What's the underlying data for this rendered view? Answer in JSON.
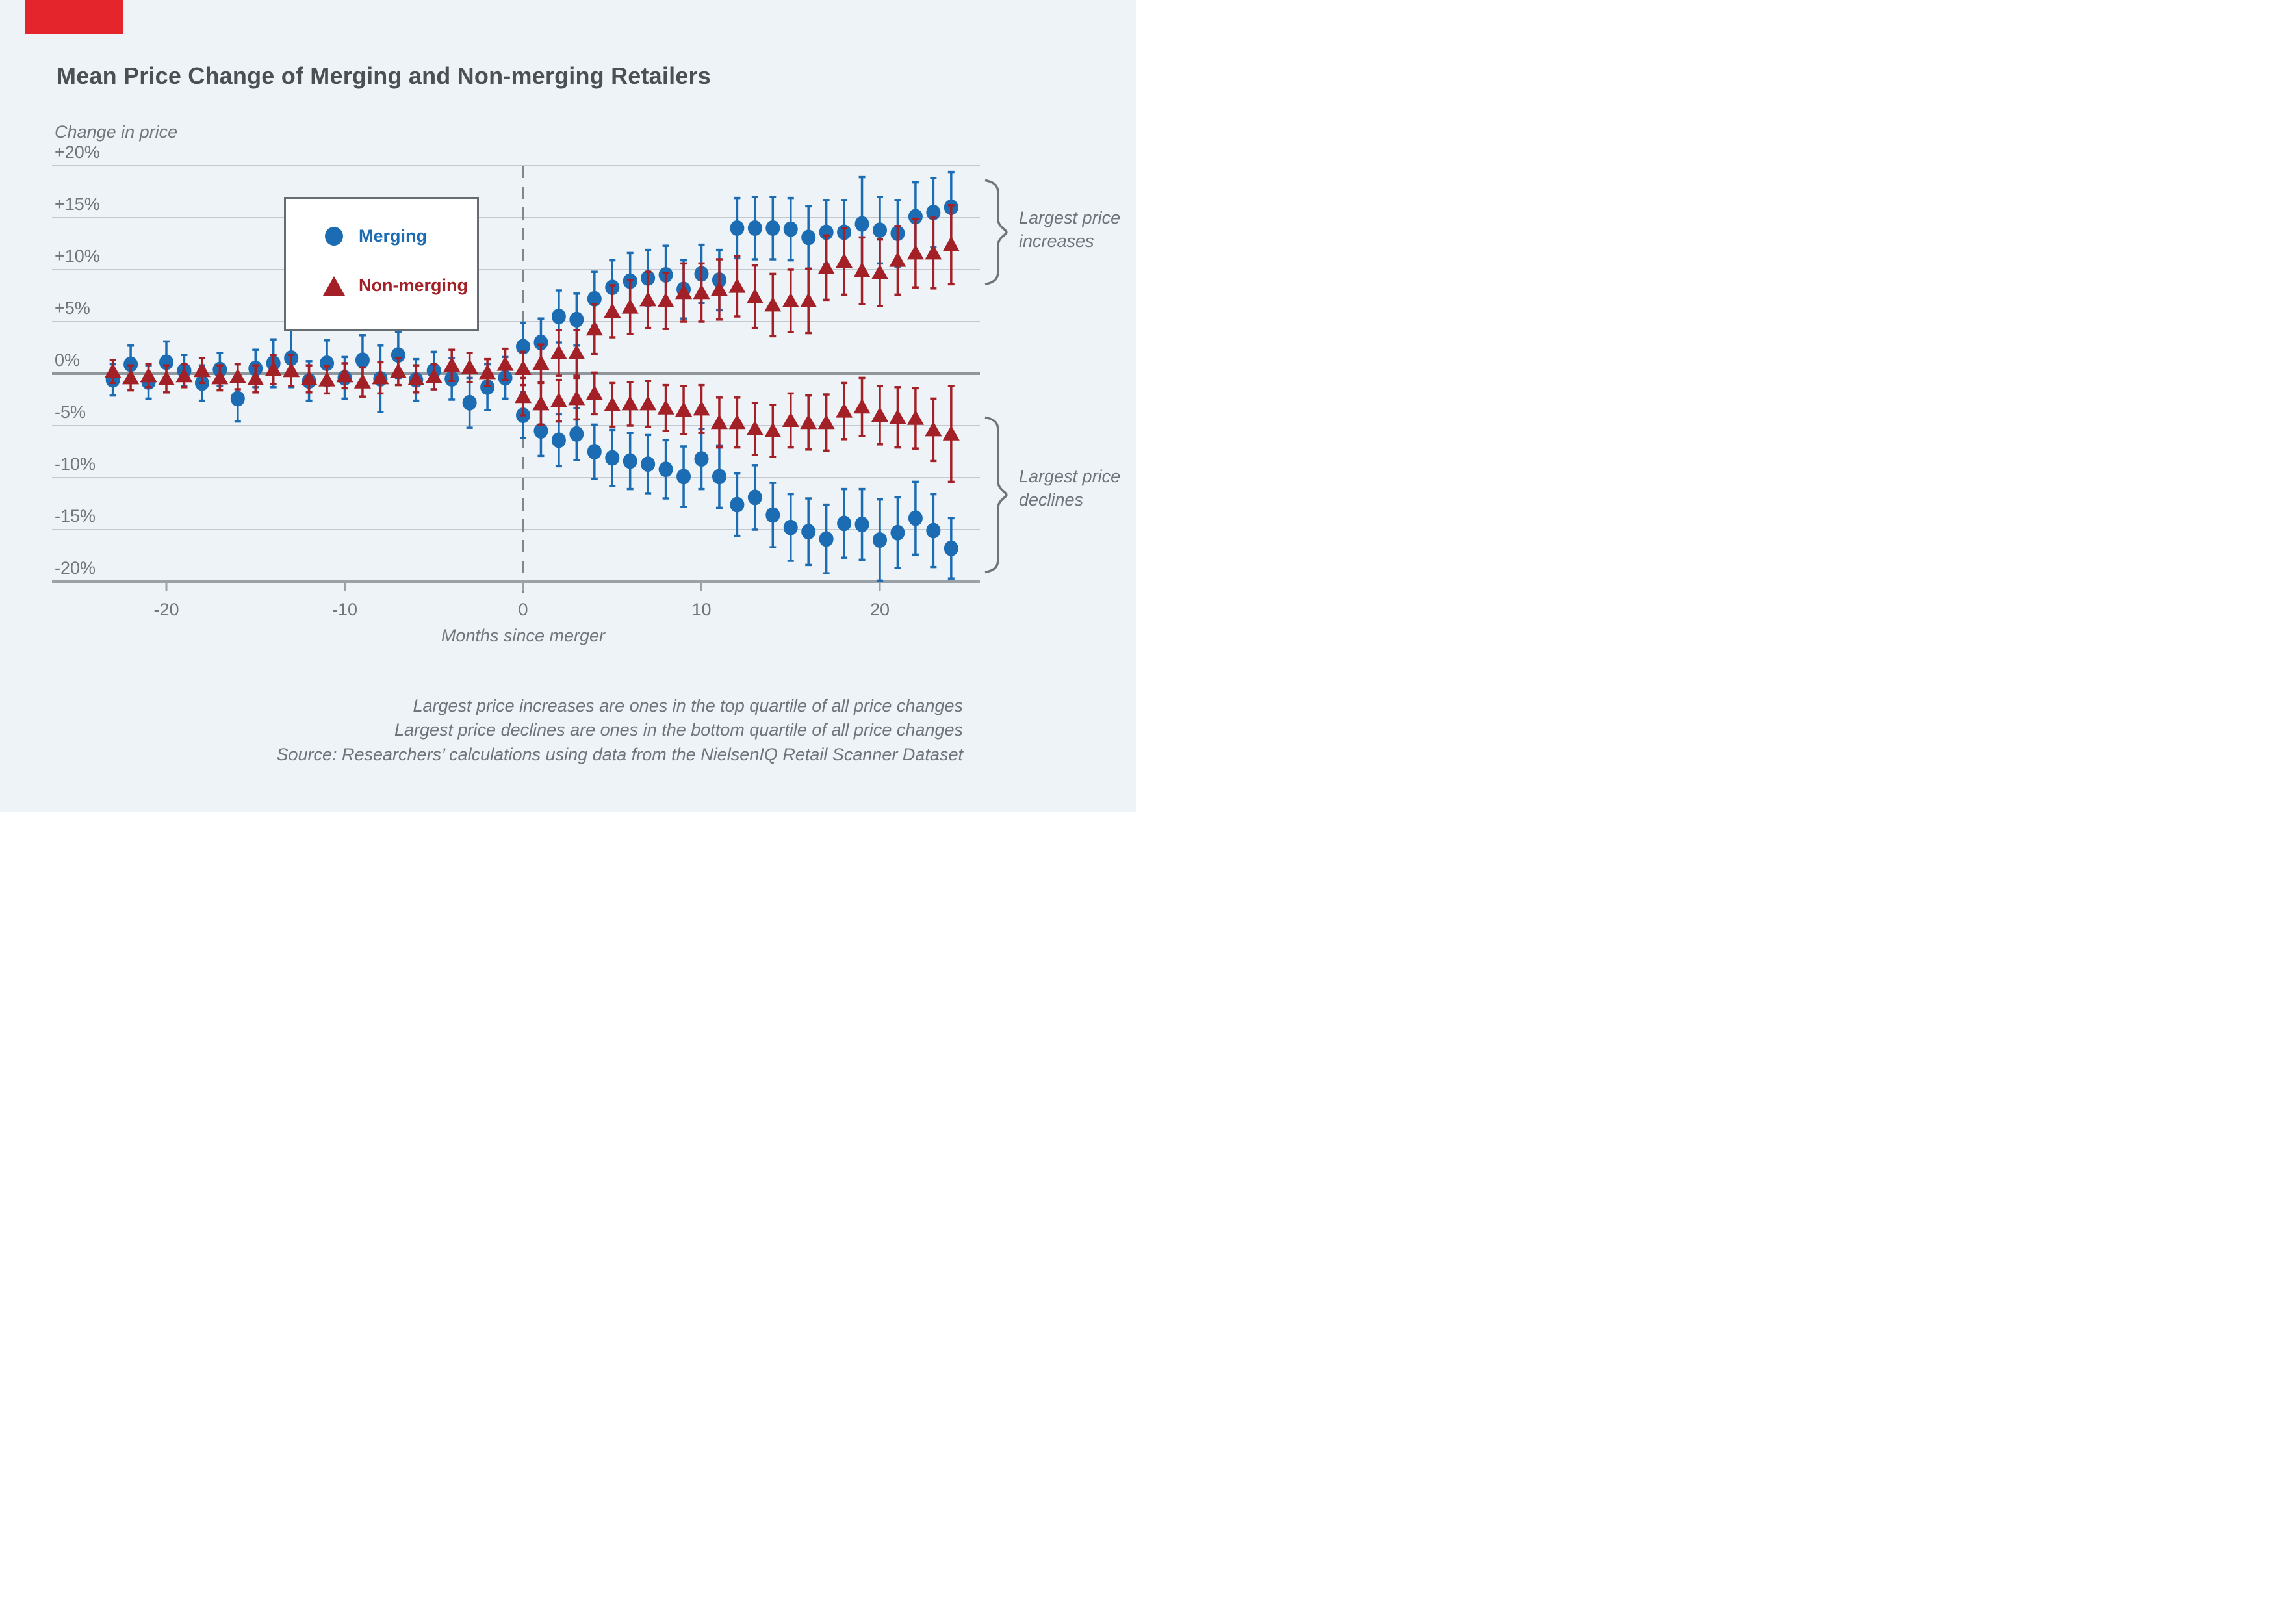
{
  "brand": {
    "color": "#e4252b"
  },
  "header": {
    "title": "Mean Price Change of Merging and Non-merging Retailers"
  },
  "legend": {
    "items": [
      {
        "label": "Merging"
      },
      {
        "label": "Non-merging"
      }
    ]
  },
  "notes": [
    "Largest price increases are ones in the top quartile of all price changes",
    "Largest price declines are ones in the bottom quartile of all price changes",
    "Source: Researchers’ calculations using data from the NielsenIQ Retail Scanner Dataset"
  ],
  "chart_data": {
    "type": "scatter",
    "title": "Mean Price Change of Merging and Non-merging Retailers",
    "y_axis_title": "Change in price",
    "x_axis_title": "Months since merger",
    "grid": true,
    "y_ticks": [
      20,
      15,
      10,
      5,
      0,
      -5,
      -10,
      -15,
      -20
    ],
    "y_tick_labels": [
      "+20%",
      "+15%",
      "+10%",
      "+5%",
      "0%",
      "-5%",
      "-10%",
      "-15%",
      "-20%"
    ],
    "x_ticks": [
      -20,
      -10,
      0,
      10,
      20
    ],
    "x_tick_labels": [
      "-20",
      "-10",
      "0",
      "10",
      "20"
    ],
    "x_range": [
      -26.4,
      25.7
    ],
    "y_range": [
      -20,
      20
    ],
    "event_month": 0,
    "point_format": [
      "month",
      "mean_price_change_pct",
      "error_halfwidth_pct"
    ],
    "colors": {
      "merging": "#1b6cb3",
      "nonmerging": "#a32026"
    },
    "series": [
      {
        "id": "merging-premerger",
        "name": "Merging",
        "marker": "circle",
        "color": "#1b6cb3",
        "points": [
          [
            -23,
            -0.6,
            1.5
          ],
          [
            -22,
            0.9,
            1.8
          ],
          [
            -21,
            -0.8,
            1.6
          ],
          [
            -20,
            1.1,
            2.0
          ],
          [
            -19,
            0.3,
            1.5
          ],
          [
            -18,
            -0.9,
            1.7
          ],
          [
            -17,
            0.4,
            1.6
          ],
          [
            -16,
            -2.4,
            2.2
          ],
          [
            -15,
            0.5,
            1.8
          ],
          [
            -14,
            1.0,
            2.3
          ],
          [
            -13,
            1.5,
            2.8
          ],
          [
            -12,
            -0.7,
            1.9
          ],
          [
            -11,
            1.0,
            2.2
          ],
          [
            -10,
            -0.4,
            2.0
          ],
          [
            -9,
            1.3,
            2.4
          ],
          [
            -8,
            -0.5,
            3.2
          ],
          [
            -7,
            1.8,
            2.2
          ],
          [
            -6,
            -0.6,
            2.0
          ],
          [
            -5,
            0.3,
            1.8
          ],
          [
            -4,
            -0.5,
            2.0
          ],
          [
            -3,
            -2.8,
            2.4
          ],
          [
            -2,
            -1.3,
            2.2
          ],
          [
            -1,
            -0.4,
            2.0
          ]
        ]
      },
      {
        "id": "merging-largest-increases",
        "name": "Merging",
        "marker": "circle",
        "color": "#1b6cb3",
        "points": [
          [
            0,
            2.6,
            2.3
          ],
          [
            1,
            3.0,
            2.3
          ],
          [
            2,
            5.5,
            2.5
          ],
          [
            3,
            5.2,
            2.5
          ],
          [
            4,
            7.2,
            2.6
          ],
          [
            5,
            8.3,
            2.6
          ],
          [
            6,
            8.9,
            2.7
          ],
          [
            7,
            9.2,
            2.7
          ],
          [
            8,
            9.5,
            2.8
          ],
          [
            9,
            8.1,
            2.8
          ],
          [
            10,
            9.6,
            2.8
          ],
          [
            11,
            9.0,
            2.9
          ],
          [
            12,
            14.0,
            2.9
          ],
          [
            13,
            14.0,
            3.0
          ],
          [
            14,
            14.0,
            3.0
          ],
          [
            15,
            13.9,
            3.0
          ],
          [
            16,
            13.1,
            3.0
          ],
          [
            17,
            13.6,
            3.1
          ],
          [
            18,
            13.6,
            3.1
          ],
          [
            19,
            14.4,
            4.5
          ],
          [
            20,
            13.8,
            3.2
          ],
          [
            21,
            13.5,
            3.2
          ],
          [
            22,
            15.1,
            3.3
          ],
          [
            23,
            15.5,
            3.3
          ],
          [
            24,
            16.0,
            3.4
          ]
        ]
      },
      {
        "id": "merging-largest-declines",
        "name": "Merging",
        "marker": "circle",
        "color": "#1b6cb3",
        "points": [
          [
            0,
            -4.0,
            2.2
          ],
          [
            1,
            -5.5,
            2.4
          ],
          [
            2,
            -6.4,
            2.5
          ],
          [
            3,
            -5.8,
            2.5
          ],
          [
            4,
            -7.5,
            2.6
          ],
          [
            5,
            -8.1,
            2.7
          ],
          [
            6,
            -8.4,
            2.7
          ],
          [
            7,
            -8.7,
            2.8
          ],
          [
            8,
            -9.2,
            2.8
          ],
          [
            9,
            -9.9,
            2.9
          ],
          [
            10,
            -8.2,
            2.9
          ],
          [
            11,
            -9.9,
            3.0
          ],
          [
            12,
            -12.6,
            3.0
          ],
          [
            13,
            -11.9,
            3.1
          ],
          [
            14,
            -13.6,
            3.1
          ],
          [
            15,
            -14.8,
            3.2
          ],
          [
            16,
            -15.2,
            3.2
          ],
          [
            17,
            -15.9,
            3.3
          ],
          [
            18,
            -14.4,
            3.3
          ],
          [
            19,
            -14.5,
            3.4
          ],
          [
            20,
            -16.0,
            3.9
          ],
          [
            21,
            -15.3,
            3.4
          ],
          [
            22,
            -13.9,
            3.5
          ],
          [
            23,
            -15.1,
            3.5
          ],
          [
            24,
            -16.8,
            2.9
          ]
        ]
      },
      {
        "id": "nonmerging-premerger",
        "name": "Non-merging",
        "marker": "triangle",
        "color": "#a32026",
        "points": [
          [
            -23,
            0.2,
            1.1
          ],
          [
            -22,
            -0.4,
            1.2
          ],
          [
            -21,
            -0.2,
            1.1
          ],
          [
            -20,
            -0.5,
            1.3
          ],
          [
            -19,
            -0.2,
            1.1
          ],
          [
            -18,
            0.3,
            1.2
          ],
          [
            -17,
            -0.4,
            1.2
          ],
          [
            -16,
            -0.3,
            1.2
          ],
          [
            -15,
            -0.5,
            1.3
          ],
          [
            -14,
            0.4,
            1.4
          ],
          [
            -13,
            0.3,
            1.5
          ],
          [
            -12,
            -0.5,
            1.3
          ],
          [
            -11,
            -0.6,
            1.3
          ],
          [
            -10,
            -0.2,
            1.2
          ],
          [
            -9,
            -0.8,
            1.4
          ],
          [
            -8,
            -0.4,
            1.5
          ],
          [
            -7,
            0.2,
            1.3
          ],
          [
            -6,
            -0.5,
            1.3
          ],
          [
            -5,
            -0.3,
            1.2
          ],
          [
            -4,
            0.8,
            1.5
          ],
          [
            -3,
            0.6,
            1.4
          ],
          [
            -2,
            0.1,
            1.3
          ],
          [
            -1,
            0.9,
            1.5
          ]
        ]
      },
      {
        "id": "nonmerging-largest-increases",
        "name": "Non-merging",
        "marker": "triangle",
        "color": "#a32026",
        "points": [
          [
            0,
            0.5,
            1.6
          ],
          [
            1,
            1.0,
            1.8
          ],
          [
            2,
            2.0,
            2.2
          ],
          [
            3,
            2.0,
            2.2
          ],
          [
            4,
            4.3,
            2.4
          ],
          [
            5,
            6.0,
            2.5
          ],
          [
            6,
            6.4,
            2.6
          ],
          [
            7,
            7.1,
            2.7
          ],
          [
            8,
            7.0,
            2.7
          ],
          [
            9,
            7.8,
            2.8
          ],
          [
            10,
            7.8,
            2.8
          ],
          [
            11,
            8.1,
            2.9
          ],
          [
            12,
            8.4,
            2.9
          ],
          [
            13,
            7.4,
            3.0
          ],
          [
            14,
            6.6,
            3.0
          ],
          [
            15,
            7.0,
            3.0
          ],
          [
            16,
            7.0,
            3.1
          ],
          [
            17,
            10.2,
            3.1
          ],
          [
            18,
            10.8,
            3.2
          ],
          [
            19,
            9.9,
            3.2
          ],
          [
            20,
            9.7,
            3.2
          ],
          [
            21,
            10.9,
            3.3
          ],
          [
            22,
            11.6,
            3.3
          ],
          [
            23,
            11.6,
            3.4
          ],
          [
            24,
            12.4,
            3.8
          ]
        ]
      },
      {
        "id": "nonmerging-largest-declines",
        "name": "Non-merging",
        "marker": "triangle",
        "color": "#a32026",
        "points": [
          [
            0,
            -2.2,
            1.8
          ],
          [
            1,
            -2.9,
            2.0
          ],
          [
            2,
            -2.6,
            2.0
          ],
          [
            3,
            -2.4,
            2.0
          ],
          [
            4,
            -1.9,
            2.0
          ],
          [
            5,
            -3.0,
            2.1
          ],
          [
            6,
            -2.9,
            2.1
          ],
          [
            7,
            -2.9,
            2.2
          ],
          [
            8,
            -3.3,
            2.2
          ],
          [
            9,
            -3.5,
            2.3
          ],
          [
            10,
            -3.4,
            2.3
          ],
          [
            11,
            -4.7,
            2.4
          ],
          [
            12,
            -4.7,
            2.4
          ],
          [
            13,
            -5.3,
            2.5
          ],
          [
            14,
            -5.5,
            2.5
          ],
          [
            15,
            -4.5,
            2.6
          ],
          [
            16,
            -4.7,
            2.6
          ],
          [
            17,
            -4.7,
            2.7
          ],
          [
            18,
            -3.6,
            2.7
          ],
          [
            19,
            -3.2,
            2.8
          ],
          [
            20,
            -4.0,
            2.8
          ],
          [
            21,
            -4.2,
            2.9
          ],
          [
            22,
            -4.3,
            2.9
          ],
          [
            23,
            -5.4,
            3.0
          ],
          [
            24,
            -5.8,
            4.6
          ]
        ]
      }
    ],
    "braces": [
      {
        "label": "Largest price increases",
        "v_from": 18.6,
        "v_to": 8.6
      },
      {
        "label": "Largest price declines",
        "v_from": -4.2,
        "v_to": -19.1
      }
    ],
    "legend_position": "upper-left-inside",
    "annotations_note": "dashed vertical line at month 0"
  }
}
